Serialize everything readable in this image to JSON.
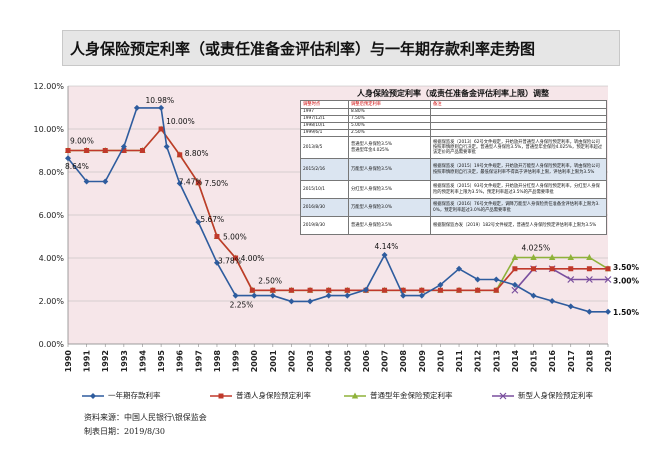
{
  "header": {
    "title": "人身保险预定利率（或责任准备金评估利率）与一年期存款利率走势图"
  },
  "chart_data": {
    "type": "line",
    "title": "人身保险预定利率（或责任准备金评估利率）与一年期存款利率走势图",
    "categories": [
      "1990",
      "1991",
      "1992",
      "1993",
      "1994",
      "1995",
      "1996",
      "1997",
      "1998",
      "1999",
      "2000",
      "2001",
      "2002",
      "2003",
      "2004",
      "2005",
      "2006",
      "2007",
      "2008",
      "2009",
      "2010",
      "2011",
      "2012",
      "2013",
      "2014",
      "2015",
      "2016",
      "2017",
      "2018",
      "2019"
    ],
    "y_ticks": [
      "0.00%",
      "2.00%",
      "4.00%",
      "6.00%",
      "8.00%",
      "10.00%",
      "12.00%"
    ],
    "ylim": [
      0,
      12
    ],
    "xlabel": "",
    "ylabel": "",
    "grid": true,
    "legend_position": "bottom",
    "series": [
      {
        "name": "一年期存款利率",
        "color": "#2e5c9e",
        "marker": "diamond",
        "points": [
          [
            0,
            8.64
          ],
          [
            1,
            7.56
          ],
          [
            2,
            7.56
          ],
          [
            3,
            9.18
          ],
          [
            3.7,
            10.98
          ],
          [
            5,
            10.98
          ],
          [
            5.3,
            9.18
          ],
          [
            6,
            7.47
          ],
          [
            7,
            5.67
          ],
          [
            8,
            3.78
          ],
          [
            9,
            2.25
          ],
          [
            10,
            2.25
          ],
          [
            11,
            2.25
          ],
          [
            12,
            1.98
          ],
          [
            13,
            1.98
          ],
          [
            14,
            2.25
          ],
          [
            15,
            2.25
          ],
          [
            16,
            2.52
          ],
          [
            17,
            4.14
          ],
          [
            18,
            2.25
          ],
          [
            19,
            2.25
          ],
          [
            20,
            2.75
          ],
          [
            21,
            3.5
          ],
          [
            22,
            3.0
          ],
          [
            23,
            3.0
          ],
          [
            24,
            2.75
          ],
          [
            25,
            2.25
          ],
          [
            26,
            2.0
          ],
          [
            27,
            1.75
          ],
          [
            28,
            1.5
          ],
          [
            29,
            1.5
          ]
        ]
      },
      {
        "name": "普通人身保险预定利率",
        "color": "#c0392b",
        "marker": "square",
        "points": [
          [
            0,
            9.0
          ],
          [
            1,
            9.0
          ],
          [
            2,
            9.0
          ],
          [
            3,
            9.0
          ],
          [
            4,
            9.0
          ],
          [
            5,
            10.0
          ],
          [
            6,
            8.8
          ],
          [
            7,
            7.5
          ],
          [
            8,
            5.0
          ],
          [
            9,
            4.0
          ],
          [
            9.9,
            2.5
          ],
          [
            11,
            2.5
          ],
          [
            12,
            2.5
          ],
          [
            13,
            2.5
          ],
          [
            14,
            2.5
          ],
          [
            15,
            2.5
          ],
          [
            16,
            2.5
          ],
          [
            17,
            2.5
          ],
          [
            18,
            2.5
          ],
          [
            19,
            2.5
          ],
          [
            20,
            2.5
          ],
          [
            21,
            2.5
          ],
          [
            22,
            2.5
          ],
          [
            23,
            2.5
          ],
          [
            24,
            3.5
          ],
          [
            25,
            3.5
          ],
          [
            26,
            3.5
          ],
          [
            27,
            3.5
          ],
          [
            28,
            3.5
          ],
          [
            29,
            3.5
          ]
        ]
      },
      {
        "name": "普通型年金保险预定利率",
        "color": "#8fb23a",
        "marker": "triangle",
        "points": [
          [
            0,
            9.0
          ],
          [
            1,
            9.0
          ],
          [
            2,
            9.0
          ],
          [
            3,
            9.0
          ],
          [
            4,
            9.0
          ],
          [
            5,
            10.0
          ],
          [
            6,
            8.8
          ],
          [
            7,
            7.5
          ],
          [
            8,
            5.0
          ],
          [
            9,
            4.0
          ],
          [
            9.9,
            2.5
          ],
          [
            11,
            2.5
          ],
          [
            12,
            2.5
          ],
          [
            13,
            2.5
          ],
          [
            14,
            2.5
          ],
          [
            15,
            2.5
          ],
          [
            16,
            2.5
          ],
          [
            17,
            2.5
          ],
          [
            18,
            2.5
          ],
          [
            19,
            2.5
          ],
          [
            20,
            2.5
          ],
          [
            21,
            2.5
          ],
          [
            22,
            2.5
          ],
          [
            23,
            2.5
          ],
          [
            24,
            4.025
          ],
          [
            25,
            4.025
          ],
          [
            26,
            4.025
          ],
          [
            27,
            4.025
          ],
          [
            28,
            4.025
          ],
          [
            29,
            3.5
          ]
        ]
      },
      {
        "name": "新型人身保险预定利率",
        "color": "#7a4f9e",
        "marker": "cross",
        "points": [
          [
            24,
            2.5
          ],
          [
            25,
            3.5
          ],
          [
            26,
            3.5
          ],
          [
            27,
            3.0
          ],
          [
            28,
            3.0
          ],
          [
            29,
            3.0
          ]
        ]
      }
    ],
    "annotations": [
      {
        "text": "8.64%",
        "x": 0,
        "y": 8.64
      },
      {
        "text": "9.00%",
        "x": 0,
        "y": 9.0
      },
      {
        "text": "10.98%",
        "x": 4,
        "y": 10.98
      },
      {
        "text": "10.00%",
        "x": 5,
        "y": 10.0
      },
      {
        "text": "8.80%",
        "x": 6,
        "y": 8.8
      },
      {
        "text": "7.47%",
        "x": 6,
        "y": 7.47
      },
      {
        "text": "7.50%",
        "x": 7,
        "y": 7.5
      },
      {
        "text": "5.67%",
        "x": 7,
        "y": 5.67
      },
      {
        "text": "5.00%",
        "x": 8,
        "y": 5.0
      },
      {
        "text": "3.78%",
        "x": 8,
        "y": 3.78
      },
      {
        "text": "4.00%",
        "x": 9,
        "y": 4.0
      },
      {
        "text": "2.25%",
        "x": 9,
        "y": 2.25
      },
      {
        "text": "2.50%",
        "x": 10,
        "y": 2.5
      },
      {
        "text": "4.14%",
        "x": 17,
        "y": 4.14
      },
      {
        "text": "4.025%",
        "x": 25,
        "y": 4.025
      },
      {
        "text": "3.50%",
        "x": 29,
        "y": 3.5
      },
      {
        "text": "3.00%",
        "x": 29,
        "y": 3.0
      },
      {
        "text": "1.50%",
        "x": 29,
        "y": 1.5
      }
    ]
  },
  "table": {
    "title": "人身保险预定利率（或责任准备金评估利率上限）调整",
    "rows": [
      {
        "cells": [
          "调整时点",
          "调整后预定利率",
          "备注"
        ],
        "style": "hd"
      },
      {
        "cells": [
          "1997",
          "8.80%",
          ""
        ],
        "style": ""
      },
      {
        "cells": [
          "1997/12/1",
          "7.50%",
          ""
        ],
        "style": ""
      },
      {
        "cells": [
          "1998/10/1",
          "5.00%",
          ""
        ],
        "style": ""
      },
      {
        "cells": [
          "1999/6/1",
          "2.50%",
          ""
        ],
        "style": ""
      },
      {
        "cells": [
          "2013/8/5",
          "普通型人身保险3.5%\n普通型年金4.025%",
          "根据保监发〔2013〕62号文件规定，开始放开普通型人身保险预定利率，转由保险公司按照审慎原则自行决定。普通型人身保险3.5%，普通型年金保险4.025%，预定利率超过该定价的产品需要审批"
        ],
        "style": ""
      },
      {
        "cells": [
          "2015/2/16",
          "万能型人身保险3.5%",
          "根据保监发〔2015〕19号文件规定，开始放开万能型人身保险预定利率，转由保险公司按照审慎原则自行决定，最低保证利率不得高于评估利率上限，评估利率上限为3.5%"
        ],
        "style": "hl"
      },
      {
        "cells": [
          "2015/10/1",
          "分红型人身保险3.5%",
          "根据保监发〔2015〕93号文件规定，开始放开分红型人身保险预定利率，分红型人身保险的预定利率上限为3.5%，预定利率超过3.5%的产品需要审批"
        ],
        "style": ""
      },
      {
        "cells": [
          "2016/8/30",
          "万能型人身保险3.0%",
          "根据保监发〔2016〕76号文件规定，调降万能型人身保险责任准备金评估利率上限为3.0%，预定利率超过3.0%的产品需要审批"
        ],
        "style": "hl"
      },
      {
        "cells": [
          "2019/8/30",
          "普通型人身保险3.5%",
          "根据银保监办发〔2019〕182号文件规定，普通型人身保险预定评估利率上限为3.5%"
        ],
        "style": ""
      }
    ]
  },
  "footer": {
    "source": "资料来源：中国人民银行\\银保监会",
    "date": "制表日期：2019/8/30"
  }
}
